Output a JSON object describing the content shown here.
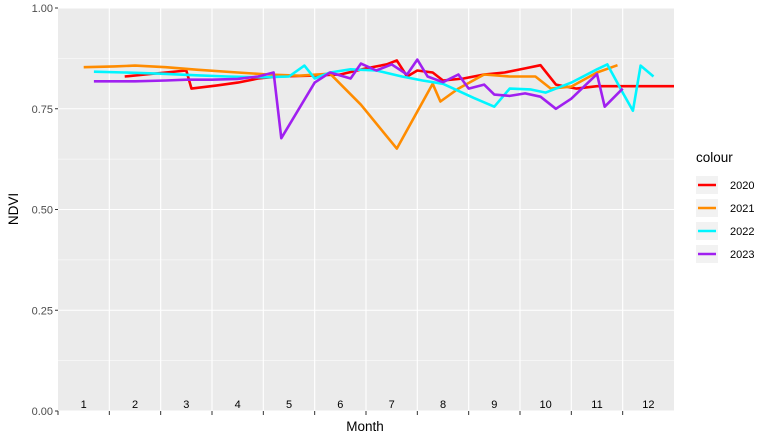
{
  "chart_data": {
    "type": "line",
    "xlabel": "Month",
    "ylabel": "NDVI",
    "ylim": [
      0,
      1
    ],
    "y_ticks": [
      "0.00",
      "0.25",
      "0.50",
      "0.75",
      "1.00"
    ],
    "y_tick_values": [
      0,
      0.25,
      0.5,
      0.75,
      1.0
    ],
    "xlim": [
      0.5,
      12.5
    ],
    "month_labels": [
      "1",
      "2",
      "3",
      "4",
      "5",
      "6",
      "7",
      "8",
      "9",
      "10",
      "11",
      "12"
    ],
    "grid": true,
    "legend": {
      "title": "colour",
      "position": "right"
    },
    "series": [
      {
        "name": "2020",
        "color": "#FF0000",
        "points": [
          [
            1.8,
            0.83
          ],
          [
            2.2,
            0.835
          ],
          [
            2.6,
            0.84
          ],
          [
            3.0,
            0.845
          ],
          [
            3.1,
            0.8
          ],
          [
            3.6,
            0.808
          ],
          [
            4.0,
            0.815
          ],
          [
            4.4,
            0.825
          ],
          [
            4.8,
            0.83
          ],
          [
            5.4,
            0.832
          ],
          [
            6.0,
            0.835
          ],
          [
            6.5,
            0.85
          ],
          [
            6.9,
            0.86
          ],
          [
            7.1,
            0.87
          ],
          [
            7.3,
            0.83
          ],
          [
            7.5,
            0.845
          ],
          [
            7.8,
            0.84
          ],
          [
            8.0,
            0.82
          ],
          [
            8.4,
            0.825
          ],
          [
            8.8,
            0.835
          ],
          [
            9.2,
            0.84
          ],
          [
            9.6,
            0.85
          ],
          [
            9.9,
            0.858
          ],
          [
            10.2,
            0.81
          ],
          [
            10.6,
            0.8
          ],
          [
            11.0,
            0.806
          ],
          [
            11.4,
            0.806
          ],
          [
            11.9,
            0.806
          ],
          [
            12.5,
            0.806
          ]
        ]
      },
      {
        "name": "2021",
        "color": "#FF8C00",
        "points": [
          [
            1.0,
            0.853
          ],
          [
            1.6,
            0.855
          ],
          [
            2.0,
            0.857
          ],
          [
            2.6,
            0.853
          ],
          [
            3.2,
            0.847
          ],
          [
            4.0,
            0.84
          ],
          [
            4.6,
            0.835
          ],
          [
            5.2,
            0.832
          ],
          [
            5.8,
            0.837
          ],
          [
            6.4,
            0.76
          ],
          [
            7.1,
            0.651
          ],
          [
            7.8,
            0.812
          ],
          [
            7.95,
            0.768
          ],
          [
            8.3,
            0.8
          ],
          [
            8.8,
            0.835
          ],
          [
            9.3,
            0.83
          ],
          [
            9.8,
            0.83
          ],
          [
            10.1,
            0.8
          ],
          [
            10.5,
            0.805
          ],
          [
            11.0,
            0.84
          ],
          [
            11.4,
            0.858
          ]
        ]
      },
      {
        "name": "2022",
        "color": "#00F5FF",
        "points": [
          [
            1.2,
            0.842
          ],
          [
            1.8,
            0.84
          ],
          [
            2.5,
            0.837
          ],
          [
            3.2,
            0.833
          ],
          [
            3.8,
            0.83
          ],
          [
            4.5,
            0.828
          ],
          [
            5.0,
            0.83
          ],
          [
            5.3,
            0.857
          ],
          [
            5.5,
            0.825
          ],
          [
            5.8,
            0.84
          ],
          [
            6.2,
            0.848
          ],
          [
            6.7,
            0.845
          ],
          [
            7.2,
            0.83
          ],
          [
            7.6,
            0.82
          ],
          [
            8.0,
            0.812
          ],
          [
            8.6,
            0.777
          ],
          [
            9.0,
            0.755
          ],
          [
            9.3,
            0.8
          ],
          [
            9.7,
            0.798
          ],
          [
            10.0,
            0.79
          ],
          [
            10.5,
            0.815
          ],
          [
            11.0,
            0.848
          ],
          [
            11.2,
            0.86
          ],
          [
            11.5,
            0.79
          ],
          [
            11.7,
            0.745
          ],
          [
            11.85,
            0.857
          ],
          [
            12.1,
            0.83
          ]
        ]
      },
      {
        "name": "2023",
        "color": "#A020F0",
        "points": [
          [
            1.2,
            0.818
          ],
          [
            2.0,
            0.818
          ],
          [
            2.6,
            0.82
          ],
          [
            3.0,
            0.822
          ],
          [
            3.5,
            0.822
          ],
          [
            4.0,
            0.824
          ],
          [
            4.4,
            0.83
          ],
          [
            4.7,
            0.84
          ],
          [
            4.85,
            0.677
          ],
          [
            5.5,
            0.815
          ],
          [
            5.8,
            0.84
          ],
          [
            6.2,
            0.825
          ],
          [
            6.4,
            0.862
          ],
          [
            6.7,
            0.845
          ],
          [
            7.0,
            0.86
          ],
          [
            7.3,
            0.835
          ],
          [
            7.5,
            0.872
          ],
          [
            7.7,
            0.83
          ],
          [
            8.0,
            0.816
          ],
          [
            8.3,
            0.835
          ],
          [
            8.5,
            0.8
          ],
          [
            8.8,
            0.81
          ],
          [
            9.0,
            0.785
          ],
          [
            9.3,
            0.782
          ],
          [
            9.6,
            0.788
          ],
          [
            9.9,
            0.78
          ],
          [
            10.2,
            0.75
          ],
          [
            10.5,
            0.775
          ],
          [
            11.0,
            0.836
          ],
          [
            11.15,
            0.755
          ],
          [
            11.5,
            0.8
          ]
        ]
      }
    ]
  }
}
